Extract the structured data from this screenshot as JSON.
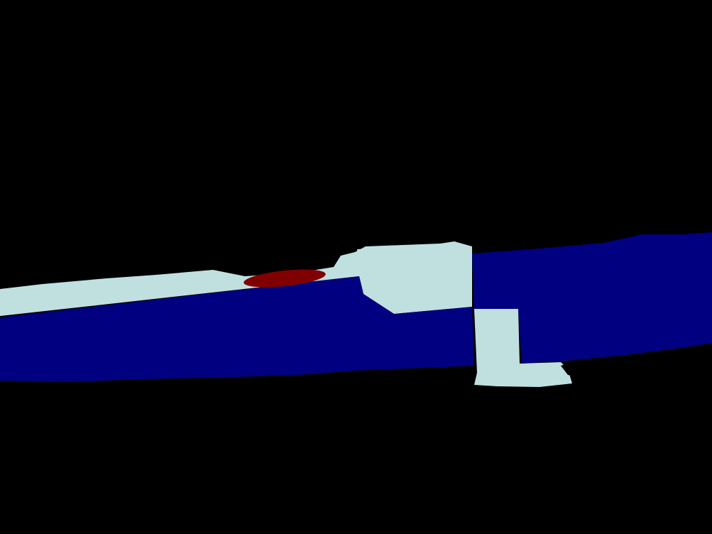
{
  "image": {
    "kind": "segmentation-mask",
    "background_color": "#000000"
  },
  "classes": [
    {
      "id": "background",
      "color": "#000000"
    },
    {
      "id": "light-cyan-region",
      "color": "#c0e0e0"
    },
    {
      "id": "navy-region",
      "color": "#000080"
    },
    {
      "id": "dark-red-region",
      "color": "#800000"
    }
  ]
}
